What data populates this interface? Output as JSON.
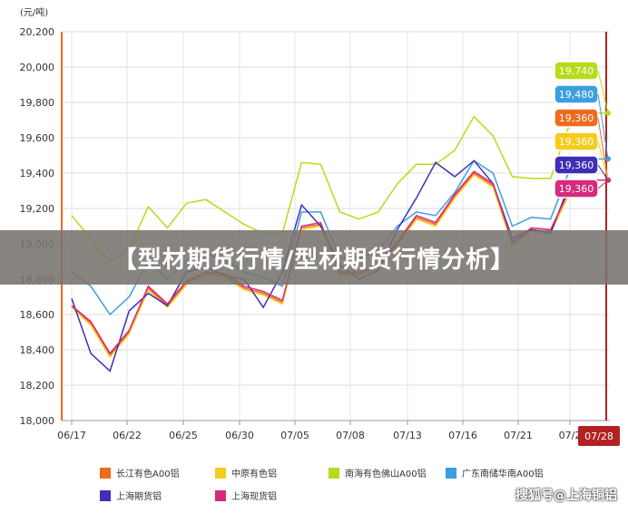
{
  "chart_data": {
    "type": "line",
    "unit_label": "(元/吨)",
    "y_ticks": [
      "20,200",
      "20,000",
      "19,800",
      "19,600",
      "19,400",
      "19,200",
      "19,000",
      "18,800",
      "18,600",
      "18,400",
      "18,200",
      "18,000"
    ],
    "ylim": [
      18000,
      20200
    ],
    "x_ticks": [
      "06/17",
      "06/22",
      "06/25",
      "06/30",
      "07/05",
      "07/08",
      "07/13",
      "07/16",
      "07/21",
      "07/2"
    ],
    "current_date_label": "07/28",
    "grid": true,
    "series": [
      {
        "name": "长江有色A00铝",
        "color": "#ee6a1c",
        "values": [
          18650,
          18550,
          18370,
          18500,
          18750,
          18650,
          18780,
          18830,
          18820,
          18750,
          18720,
          18670,
          19090,
          19110,
          18830,
          18830,
          18870,
          19000,
          19150,
          19110,
          19270,
          19400,
          19330,
          19000,
          19080,
          19070,
          19300,
          19360,
          19360
        ]
      },
      {
        "name": "中原有色铝",
        "color": "#f5cc1e",
        "values": [
          18640,
          18540,
          18360,
          18490,
          18740,
          18640,
          18770,
          18820,
          18810,
          18740,
          18710,
          18660,
          19080,
          19100,
          18820,
          18820,
          18860,
          18990,
          19140,
          19100,
          19260,
          19390,
          19320,
          18990,
          19070,
          19060,
          19290,
          19360,
          19360
        ]
      },
      {
        "name": "南海有色佛山A00铝",
        "color": "#b5dc1a",
        "values": [
          19160,
          19030,
          18900,
          18970,
          19210,
          19090,
          19230,
          19250,
          19180,
          19110,
          19060,
          19060,
          19460,
          19450,
          19180,
          19140,
          19180,
          19340,
          19450,
          19450,
          19530,
          19720,
          19610,
          19380,
          19370,
          19370,
          19680,
          19740,
          19740
        ]
      },
      {
        "name": "广东南储华南A00铝",
        "color": "#3b9fdf",
        "values": [
          18840,
          18760,
          18600,
          18700,
          18900,
          18800,
          18900,
          18940,
          18910,
          18840,
          18810,
          18760,
          19180,
          19180,
          18920,
          18920,
          18960,
          19100,
          19180,
          19160,
          19290,
          19470,
          19400,
          19100,
          19150,
          19140,
          19420,
          19480,
          19480
        ]
      },
      {
        "name": "上海期货铝",
        "color": "#3f2fb8",
        "values": [
          18690,
          18380,
          18280,
          18620,
          18720,
          18650,
          18840,
          18870,
          18820,
          18800,
          18640,
          18840,
          19220,
          19100,
          18880,
          18800,
          18850,
          19080,
          19260,
          19460,
          19380,
          19470,
          19340,
          19030,
          19080,
          19060,
          19340,
          19360,
          19360
        ]
      },
      {
        "name": "上海现货铝",
        "color": "#d62a7b",
        "values": [
          18650,
          18560,
          18380,
          18510,
          18760,
          18660,
          18790,
          18840,
          18830,
          18760,
          18730,
          18680,
          19100,
          19120,
          18840,
          18840,
          18880,
          19010,
          19160,
          19120,
          19280,
          19410,
          19340,
          19010,
          19090,
          19080,
          19310,
          19360,
          19360
        ]
      }
    ],
    "end_labels": [
      "19,740",
      "19,480",
      "19,360",
      "19,360",
      "19,360",
      "19,360"
    ]
  },
  "banner": "【型材期货行情/型材期货行情分析】",
  "watermark": "搜狐号@上海铜铝"
}
